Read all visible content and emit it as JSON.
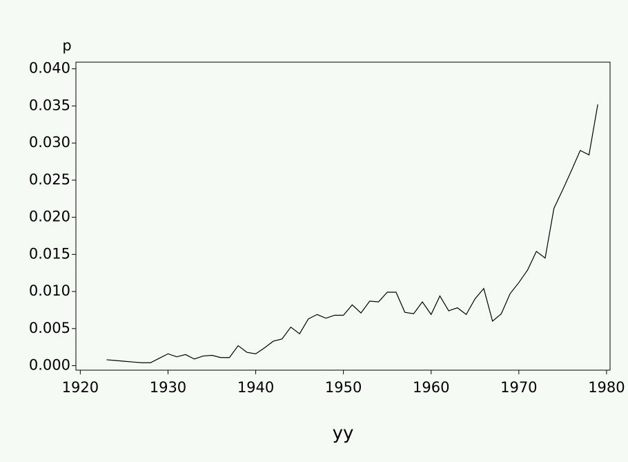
{
  "chart_data": {
    "type": "line",
    "x_label": "yy",
    "y_label": "p",
    "x": [
      1923,
      1924,
      1925,
      1926,
      1927,
      1928,
      1929,
      1930,
      1931,
      1932,
      1933,
      1934,
      1935,
      1936,
      1937,
      1938,
      1939,
      1940,
      1941,
      1942,
      1943,
      1944,
      1945,
      1946,
      1947,
      1948,
      1949,
      1950,
      1951,
      1952,
      1953,
      1954,
      1955,
      1956,
      1957,
      1958,
      1959,
      1960,
      1961,
      1962,
      1963,
      1964,
      1965,
      1966,
      1967,
      1968,
      1969,
      1970,
      1971,
      1972,
      1973,
      1974,
      1975,
      1976,
      1977,
      1978,
      1979
    ],
    "series": [
      {
        "name": "p",
        "color": "#000000",
        "values": [
          0.0008,
          0.0007,
          0.0006,
          0.0005,
          0.0004,
          0.0004,
          0.001,
          0.0016,
          0.0012,
          0.0015,
          0.0009,
          0.0013,
          0.0014,
          0.0011,
          0.0011,
          0.0027,
          0.0018,
          0.0016,
          0.0024,
          0.0033,
          0.0036,
          0.0052,
          0.0043,
          0.0063,
          0.0069,
          0.0064,
          0.0068,
          0.0068,
          0.0082,
          0.0071,
          0.0087,
          0.0086,
          0.0099,
          0.0099,
          0.0072,
          0.007,
          0.0086,
          0.0069,
          0.0094,
          0.0074,
          0.0078,
          0.0069,
          0.009,
          0.0104,
          0.006,
          0.007,
          0.0097,
          0.0112,
          0.0129,
          0.0154,
          0.0145,
          0.0212,
          0.0237,
          0.0263,
          0.029,
          0.0284,
          0.0352
        ]
      }
    ],
    "xlim": [
      1919.5,
      1980.4
    ],
    "xticks": [
      1920,
      1930,
      1940,
      1950,
      1960,
      1970,
      1980
    ],
    "ylim": [
      -0.0006,
      0.0409
    ],
    "yticks": [
      {
        "value": 0,
        "label": "0.000"
      },
      {
        "value": 0.005,
        "label": "0.005"
      },
      {
        "value": 0.01,
        "label": "0.010"
      },
      {
        "value": 0.015,
        "label": "0.015"
      },
      {
        "value": 0.02,
        "label": "0.020"
      },
      {
        "value": 0.025,
        "label": "0.025"
      },
      {
        "value": 0.03,
        "label": "0.030"
      },
      {
        "value": 0.035,
        "label": "0.035"
      },
      {
        "value": 0.04,
        "label": "0.040"
      }
    ],
    "grid": false
  }
}
